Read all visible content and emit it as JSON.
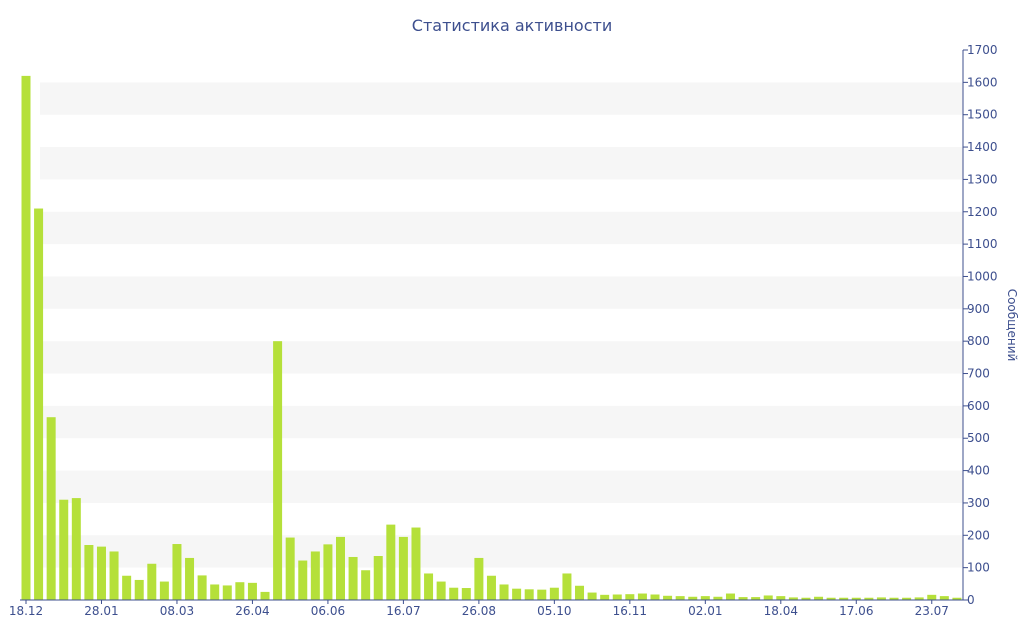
{
  "chart_data": {
    "type": "bar",
    "title": "Статистика активности",
    "ylabel": "Сообщений",
    "ylim": [
      0,
      1700
    ],
    "y_ticks": [
      0,
      100,
      200,
      300,
      400,
      500,
      600,
      700,
      800,
      900,
      1000,
      1100,
      1200,
      1300,
      1400,
      1500,
      1600,
      1700
    ],
    "y_axis_side": "right",
    "grid": "alternating horizontal bands",
    "x_tick_labels": [
      {
        "label": "18.12",
        "index": 0
      },
      {
        "label": "28.01",
        "index": 6
      },
      {
        "label": "08.03",
        "index": 12
      },
      {
        "label": "26.04",
        "index": 18
      },
      {
        "label": "06.06",
        "index": 24
      },
      {
        "label": "16.07",
        "index": 30
      },
      {
        "label": "26.08",
        "index": 36
      },
      {
        "label": "05.10",
        "index": 42
      },
      {
        "label": "16.11",
        "index": 48
      },
      {
        "label": "02.01",
        "index": 54
      },
      {
        "label": "18.04",
        "index": 60
      },
      {
        "label": "17.06",
        "index": 66
      },
      {
        "label": "23.07",
        "index": 72
      }
    ],
    "values": [
      1620,
      1210,
      565,
      310,
      315,
      170,
      165,
      150,
      75,
      62,
      112,
      57,
      173,
      130,
      76,
      48,
      45,
      55,
      53,
      25,
      800,
      193,
      122,
      150,
      172,
      195,
      133,
      92,
      136,
      233,
      195,
      224,
      82,
      57,
      38,
      37,
      130,
      75,
      48,
      35,
      33,
      32,
      38,
      82,
      44,
      23,
      16,
      17,
      18,
      20,
      17,
      13,
      12,
      10,
      12,
      10,
      20,
      9,
      9,
      14,
      12,
      8,
      7,
      10,
      7,
      7,
      7,
      7,
      8,
      7,
      7,
      8,
      16,
      12,
      7
    ],
    "colors": {
      "bar": "#b5e03a",
      "text": "#3d4f8e",
      "band": "#f6f6f6"
    }
  }
}
